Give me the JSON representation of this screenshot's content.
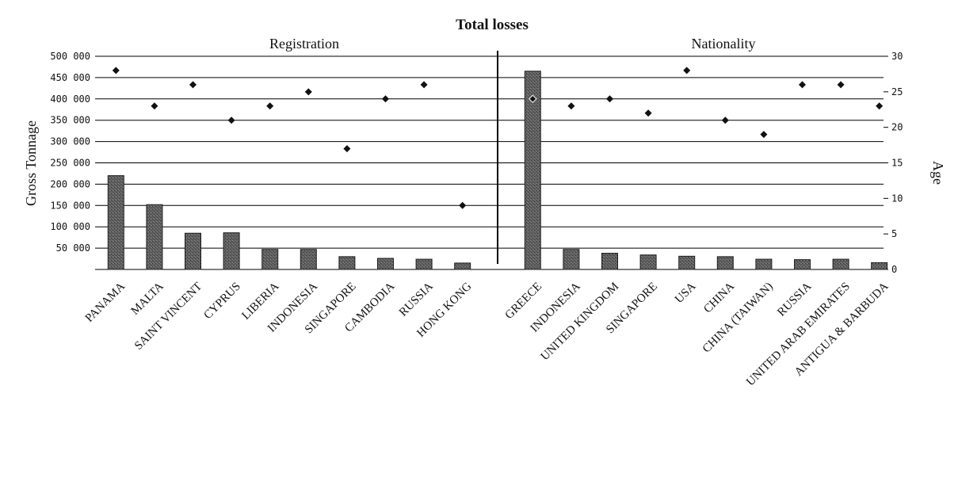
{
  "chart_data": {
    "type": "bar",
    "title": "Total losses",
    "ylabel": "Gross Tonnage",
    "y2label": "Age",
    "ylim": [
      0,
      500000
    ],
    "y2lim": [
      0,
      30
    ],
    "yticks": [
      "500 000",
      "450 000",
      "400 000",
      "350 000",
      "300 000",
      "250 000",
      "200 000",
      "150 000",
      "100 000",
      "50 000"
    ],
    "y2ticks": [
      "0",
      "5",
      "10",
      "15",
      "20",
      "25",
      "30"
    ],
    "y2tick_values": [
      0,
      5,
      10,
      15,
      20,
      25,
      30
    ],
    "ytick_values": [
      500000,
      450000,
      400000,
      350000,
      300000,
      250000,
      200000,
      150000,
      100000,
      50000
    ],
    "grid": true,
    "groups": [
      {
        "name": "Registration",
        "categories": [
          "PANAMA",
          "MALTA",
          "SAINT VINCENT",
          "CYPRUS",
          "LIBERIA",
          "INDONESIA",
          "SINGAPORE",
          "CAMBODIA",
          "RUSSIA",
          "HONG KONG"
        ],
        "tonnage": [
          220000,
          152000,
          85000,
          86000,
          47000,
          47000,
          30000,
          26000,
          24000,
          15000
        ],
        "age": [
          28,
          23,
          26,
          21,
          23,
          25,
          17,
          24,
          26,
          9
        ]
      },
      {
        "name": "Nationality",
        "categories": [
          "GREECE",
          "INDONESIA",
          "UNITED KINGDOM",
          "SINGAPORE",
          "USA",
          "CHINA",
          "CHINA (TAIWAN)",
          "RUSSIA",
          "UNITED ARAB EMIRATES",
          "ANTIGUA & BARBUDA"
        ],
        "tonnage": [
          465000,
          47000,
          38000,
          34000,
          31000,
          30000,
          24000,
          23000,
          24000,
          16000
        ],
        "age": [
          24,
          23,
          24,
          22,
          28,
          21,
          19,
          26,
          26,
          23
        ]
      }
    ]
  },
  "colors": {
    "bar_fill": "#5c5c5c",
    "bar_stroke": "#1f1f1f",
    "marker": "#111111",
    "grid": "#000000",
    "text": "#111111"
  }
}
